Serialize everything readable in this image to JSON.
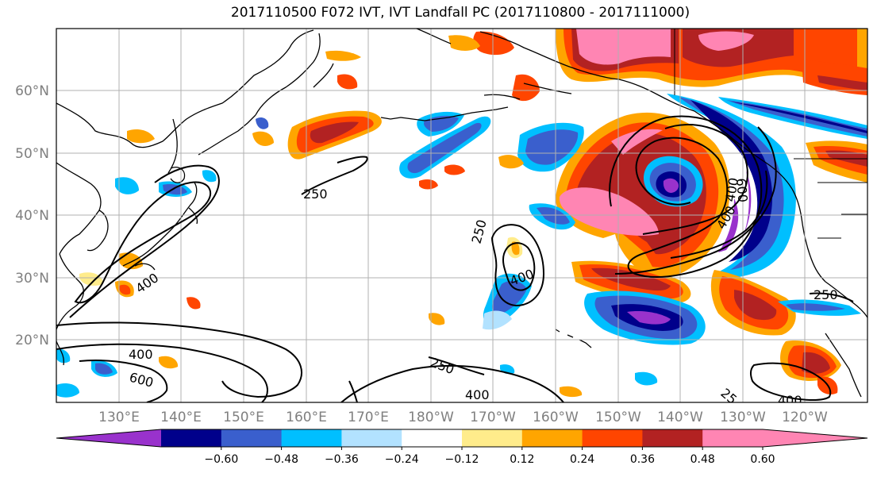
{
  "title": "2017110500 F072 IVT, IVT Landfall PC (2017110800 - 2017111000)",
  "latitude_labels": [
    "60°N",
    "50°N",
    "40°N",
    "30°N",
    "20°N"
  ],
  "longitude_labels": [
    "130°E",
    "140°E",
    "150°E",
    "160°E",
    "170°E",
    "180°W",
    "170°W",
    "160°W",
    "150°W",
    "140°W",
    "130°W",
    "120°W"
  ],
  "contour_labels": [
    "250",
    "400",
    "400",
    "600",
    "250",
    "400",
    "250",
    "400",
    "400",
    "400",
    "600",
    "250",
    "400",
    "25"
  ],
  "colorbar": {
    "tick_labels": [
      "−0.60",
      "−0.48",
      "−0.36",
      "−0.24",
      "−0.12",
      "0.12",
      "0.24",
      "0.36",
      "0.48",
      "0.60"
    ],
    "colors": [
      "#9932cc",
      "#00008b",
      "#3a5fcd",
      "#00bfff",
      "#b2e2ff",
      "#ffffff",
      "#ffec8b",
      "#ffa500",
      "#ff4500",
      "#b22222",
      "#ff85b3",
      "#ff85b3"
    ]
  },
  "colors": {
    "coastline": "#000000",
    "grid": "#b0b0b0",
    "contour": "#000000"
  }
}
